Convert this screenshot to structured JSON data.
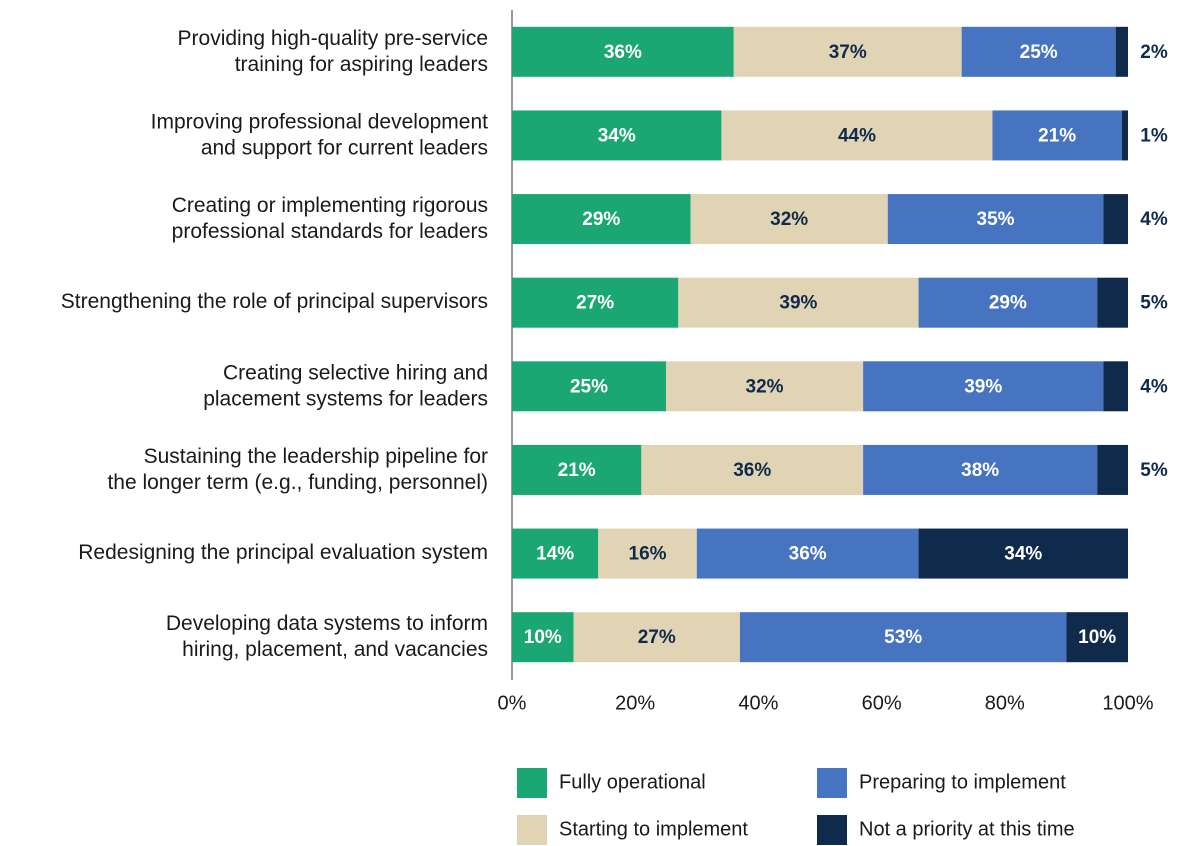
{
  "chart_data": {
    "type": "stacked_bar_horizontal",
    "categories": [
      "Providing high-quality pre-service\ntraining for aspiring leaders",
      "Improving professional development\nand support for current leaders",
      "Creating or implementing rigorous\nprofessional standards for leaders",
      "Strengthening the role of principal supervisors",
      "Creating selective hiring and\nplacement systems for leaders",
      "Sustaining the leadership pipeline for\nthe longer term (e.g., funding, personnel)",
      "Redesigning the principal evaluation system",
      "Developing data systems to inform\nhiring, placement, and vacancies"
    ],
    "series": [
      {
        "name": "Fully operational",
        "color": "#1aa774",
        "values": [
          36,
          34,
          29,
          27,
          25,
          21,
          14,
          10
        ],
        "value_labels": [
          "36%",
          "34%",
          "29%",
          "27%",
          "25%",
          "21%",
          "14%",
          "10%"
        ]
      },
      {
        "name": "Starting to implement",
        "color": "#e1d4b5",
        "values": [
          37,
          44,
          32,
          39,
          32,
          36,
          16,
          27
        ],
        "value_labels": [
          "37%",
          "44%",
          "32%",
          "39%",
          "32%",
          "36%",
          "16%",
          "27%"
        ]
      },
      {
        "name": "Preparing to implement",
        "color": "#4774c1",
        "values": [
          25,
          21,
          35,
          29,
          39,
          38,
          36,
          53
        ],
        "value_labels": [
          "25%",
          "21%",
          "35%",
          "29%",
          "39%",
          "38%",
          "36%",
          "53%"
        ]
      },
      {
        "name": "Not a priority at this time",
        "color": "#0f2a4a",
        "values": [
          2,
          1,
          4,
          5,
          4,
          5,
          34,
          10
        ],
        "value_labels": [
          "2%",
          "1%",
          "4%",
          "5%",
          "4%",
          "5%",
          "34%",
          "10%"
        ]
      }
    ],
    "xlim": [
      0,
      100
    ],
    "xticks": [
      {
        "value": 0,
        "label": "0%"
      },
      {
        "value": 20,
        "label": "20%"
      },
      {
        "value": 40,
        "label": "40%"
      },
      {
        "value": 60,
        "label": "60%"
      },
      {
        "value": 80,
        "label": "80%"
      },
      {
        "value": 100,
        "label": "100%"
      }
    ],
    "legend": "bottom"
  }
}
